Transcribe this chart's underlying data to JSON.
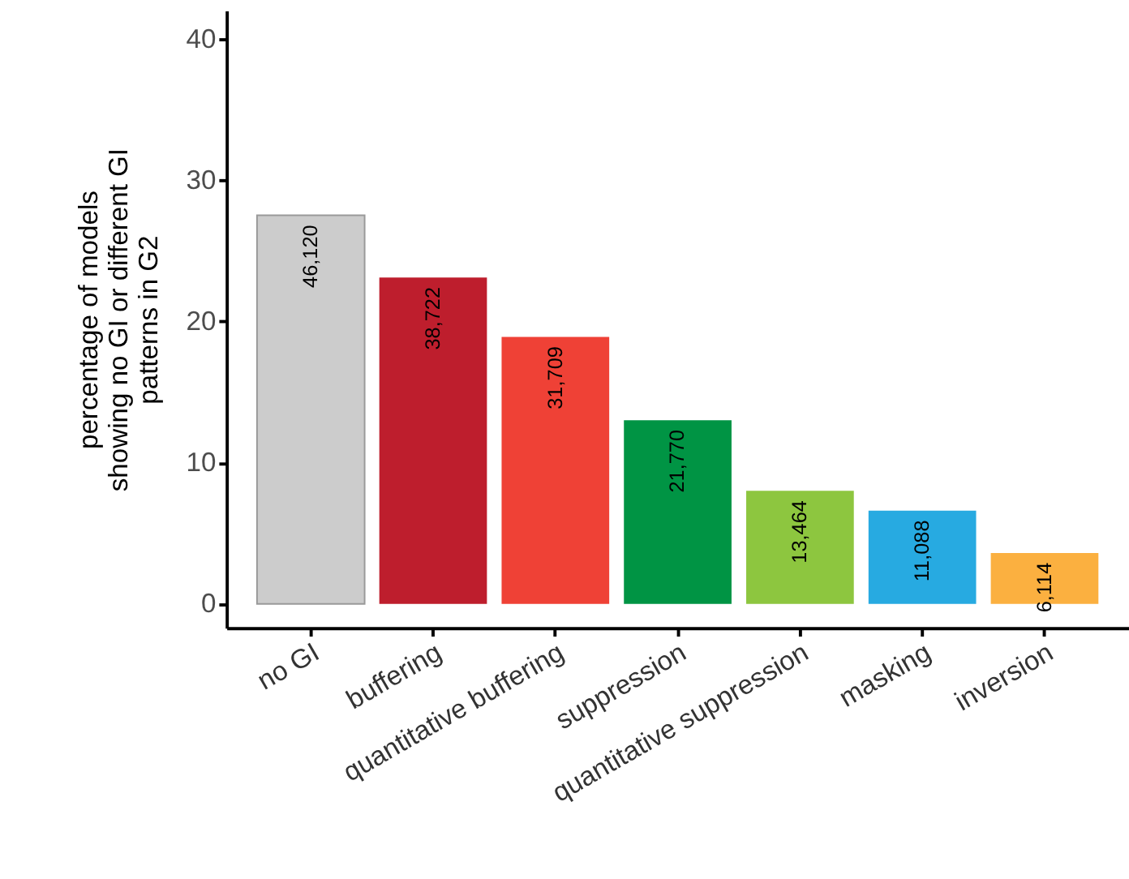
{
  "chart_data": {
    "type": "bar",
    "ylabel": "percentage of models\nshowing no GI or different GI\npatterns in G2",
    "categories": [
      "no GI",
      "buffering",
      "quantitative buffering",
      "suppression",
      "quantitative suppression",
      "masking",
      "inversion"
    ],
    "values": [
      27.5,
      23.1,
      18.9,
      13.0,
      8.0,
      6.6,
      3.6
    ],
    "colors": [
      "#cccccc",
      "#be1e2d",
      "#ef4136",
      "#009444",
      "#8dc63f",
      "#27aae1",
      "#fbb040"
    ],
    "annotations": [
      {
        "text": "46,120",
        "x": "no GI",
        "y": 27.5
      },
      {
        "text": "38,722",
        "x": "buffering",
        "y": 23.1
      },
      {
        "text": "31,709",
        "x": "quantitative buffering",
        "y": 18.9
      },
      {
        "text": "21,770",
        "x": "suppression",
        "y": 13.0
      },
      {
        "text": "13,464",
        "x": "quantitative suppression",
        "y": 8.0
      },
      {
        "text": "11,088",
        "x": "masking",
        "y": 6.6
      },
      {
        "text": "6,114",
        "x": "inversion",
        "y": 3.6
      }
    ],
    "ylim": [
      -1.7,
      42
    ],
    "yticks": [
      0,
      10,
      20,
      30,
      40
    ],
    "grid": false
  }
}
